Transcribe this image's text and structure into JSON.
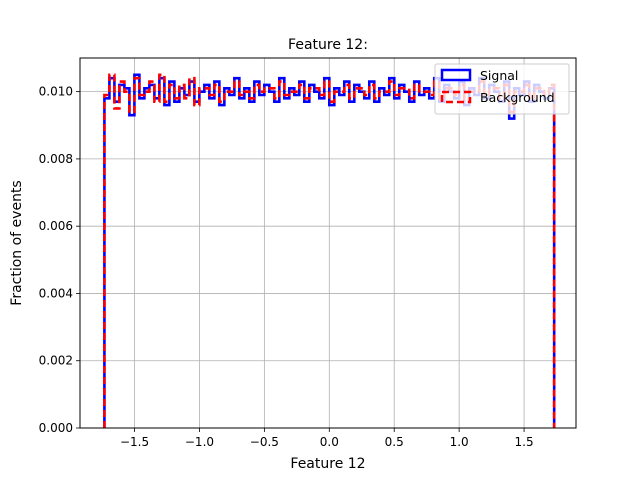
{
  "chart_data": {
    "type": "histogram",
    "title": "Feature 12:",
    "xlabel": "Feature 12",
    "ylabel": "Fraction of events",
    "xlim": [
      -1.92,
      1.9
    ],
    "ylim": [
      0.0,
      0.011
    ],
    "xticks": [
      -1.5,
      -1.0,
      -0.5,
      0.0,
      0.5,
      1.0,
      1.5
    ],
    "xtick_labels": [
      "−1.5",
      "−1.0",
      "−0.5",
      "0.0",
      "0.5",
      "1.0",
      "1.5"
    ],
    "yticks": [
      0.0,
      0.002,
      0.004,
      0.006,
      0.008,
      0.01
    ],
    "ytick_labels": [
      "0.000",
      "0.002",
      "0.004",
      "0.006",
      "0.008",
      "0.010"
    ],
    "grid": true,
    "legend_position": "top-right",
    "bin_range": [
      -1.732,
      1.732
    ],
    "series": [
      {
        "name": "Signal",
        "color": "#0000ff",
        "linestyle": "solid",
        "values": [
          0.0098,
          0.0104,
          0.0097,
          0.0102,
          0.0101,
          0.0093,
          0.0105,
          0.0098,
          0.0101,
          0.0102,
          0.0098,
          0.0104,
          0.0096,
          0.0103,
          0.0097,
          0.0101,
          0.0099,
          0.0103,
          0.0097,
          0.01,
          0.0102,
          0.0098,
          0.0103,
          0.0096,
          0.0101,
          0.0099,
          0.0104,
          0.0098,
          0.0101,
          0.0097,
          0.0103,
          0.0099,
          0.0102,
          0.01,
          0.0097,
          0.0104,
          0.0098,
          0.0101,
          0.0099,
          0.0103,
          0.0097,
          0.0102,
          0.01,
          0.0098,
          0.0104,
          0.0096,
          0.0101,
          0.0099,
          0.0103,
          0.0097,
          0.0102,
          0.01,
          0.0098,
          0.0103,
          0.0097,
          0.0101,
          0.0099,
          0.0104,
          0.0098,
          0.0102,
          0.01,
          0.0097,
          0.0103,
          0.0099,
          0.0101,
          0.0098,
          0.0104,
          0.0097,
          0.0102,
          0.01,
          0.0098,
          0.0103,
          0.0096,
          0.0101,
          0.0099,
          0.0104,
          0.0098,
          0.0102,
          0.01,
          0.0097,
          0.0103,
          0.0092,
          0.0101,
          0.0099,
          0.0103,
          0.0097,
          0.0102,
          0.01,
          0.0098,
          0.0101
        ]
      },
      {
        "name": "Background",
        "color": "#ff0000",
        "linestyle": "dashed",
        "values": [
          0.0099,
          0.0105,
          0.0095,
          0.0103,
          0.01,
          0.0094,
          0.0104,
          0.0099,
          0.01,
          0.0103,
          0.0097,
          0.0105,
          0.0097,
          0.0102,
          0.0098,
          0.0102,
          0.0098,
          0.0104,
          0.0096,
          0.0101,
          0.0101,
          0.0099,
          0.0102,
          0.0097,
          0.01,
          0.01,
          0.0103,
          0.0099,
          0.01,
          0.0098,
          0.0102,
          0.01,
          0.0101,
          0.0101,
          0.0098,
          0.0103,
          0.0099,
          0.01,
          0.01,
          0.0102,
          0.0098,
          0.0101,
          0.0101,
          0.0099,
          0.0103,
          0.0097,
          0.01,
          0.01,
          0.0102,
          0.0098,
          0.0101,
          0.0101,
          0.0099,
          0.0102,
          0.0098,
          0.01,
          0.01,
          0.0103,
          0.0099,
          0.0101,
          0.0101,
          0.0098,
          0.0102,
          0.01,
          0.01,
          0.0099,
          0.0103,
          0.0098,
          0.0101,
          0.0101,
          0.0099,
          0.0102,
          0.0097,
          0.01,
          0.01,
          0.0103,
          0.0099,
          0.0101,
          0.0101,
          0.0098,
          0.0102,
          0.0094,
          0.01,
          0.01,
          0.0102,
          0.0098,
          0.0101,
          0.0101,
          0.0099,
          0.0102
        ]
      }
    ]
  }
}
